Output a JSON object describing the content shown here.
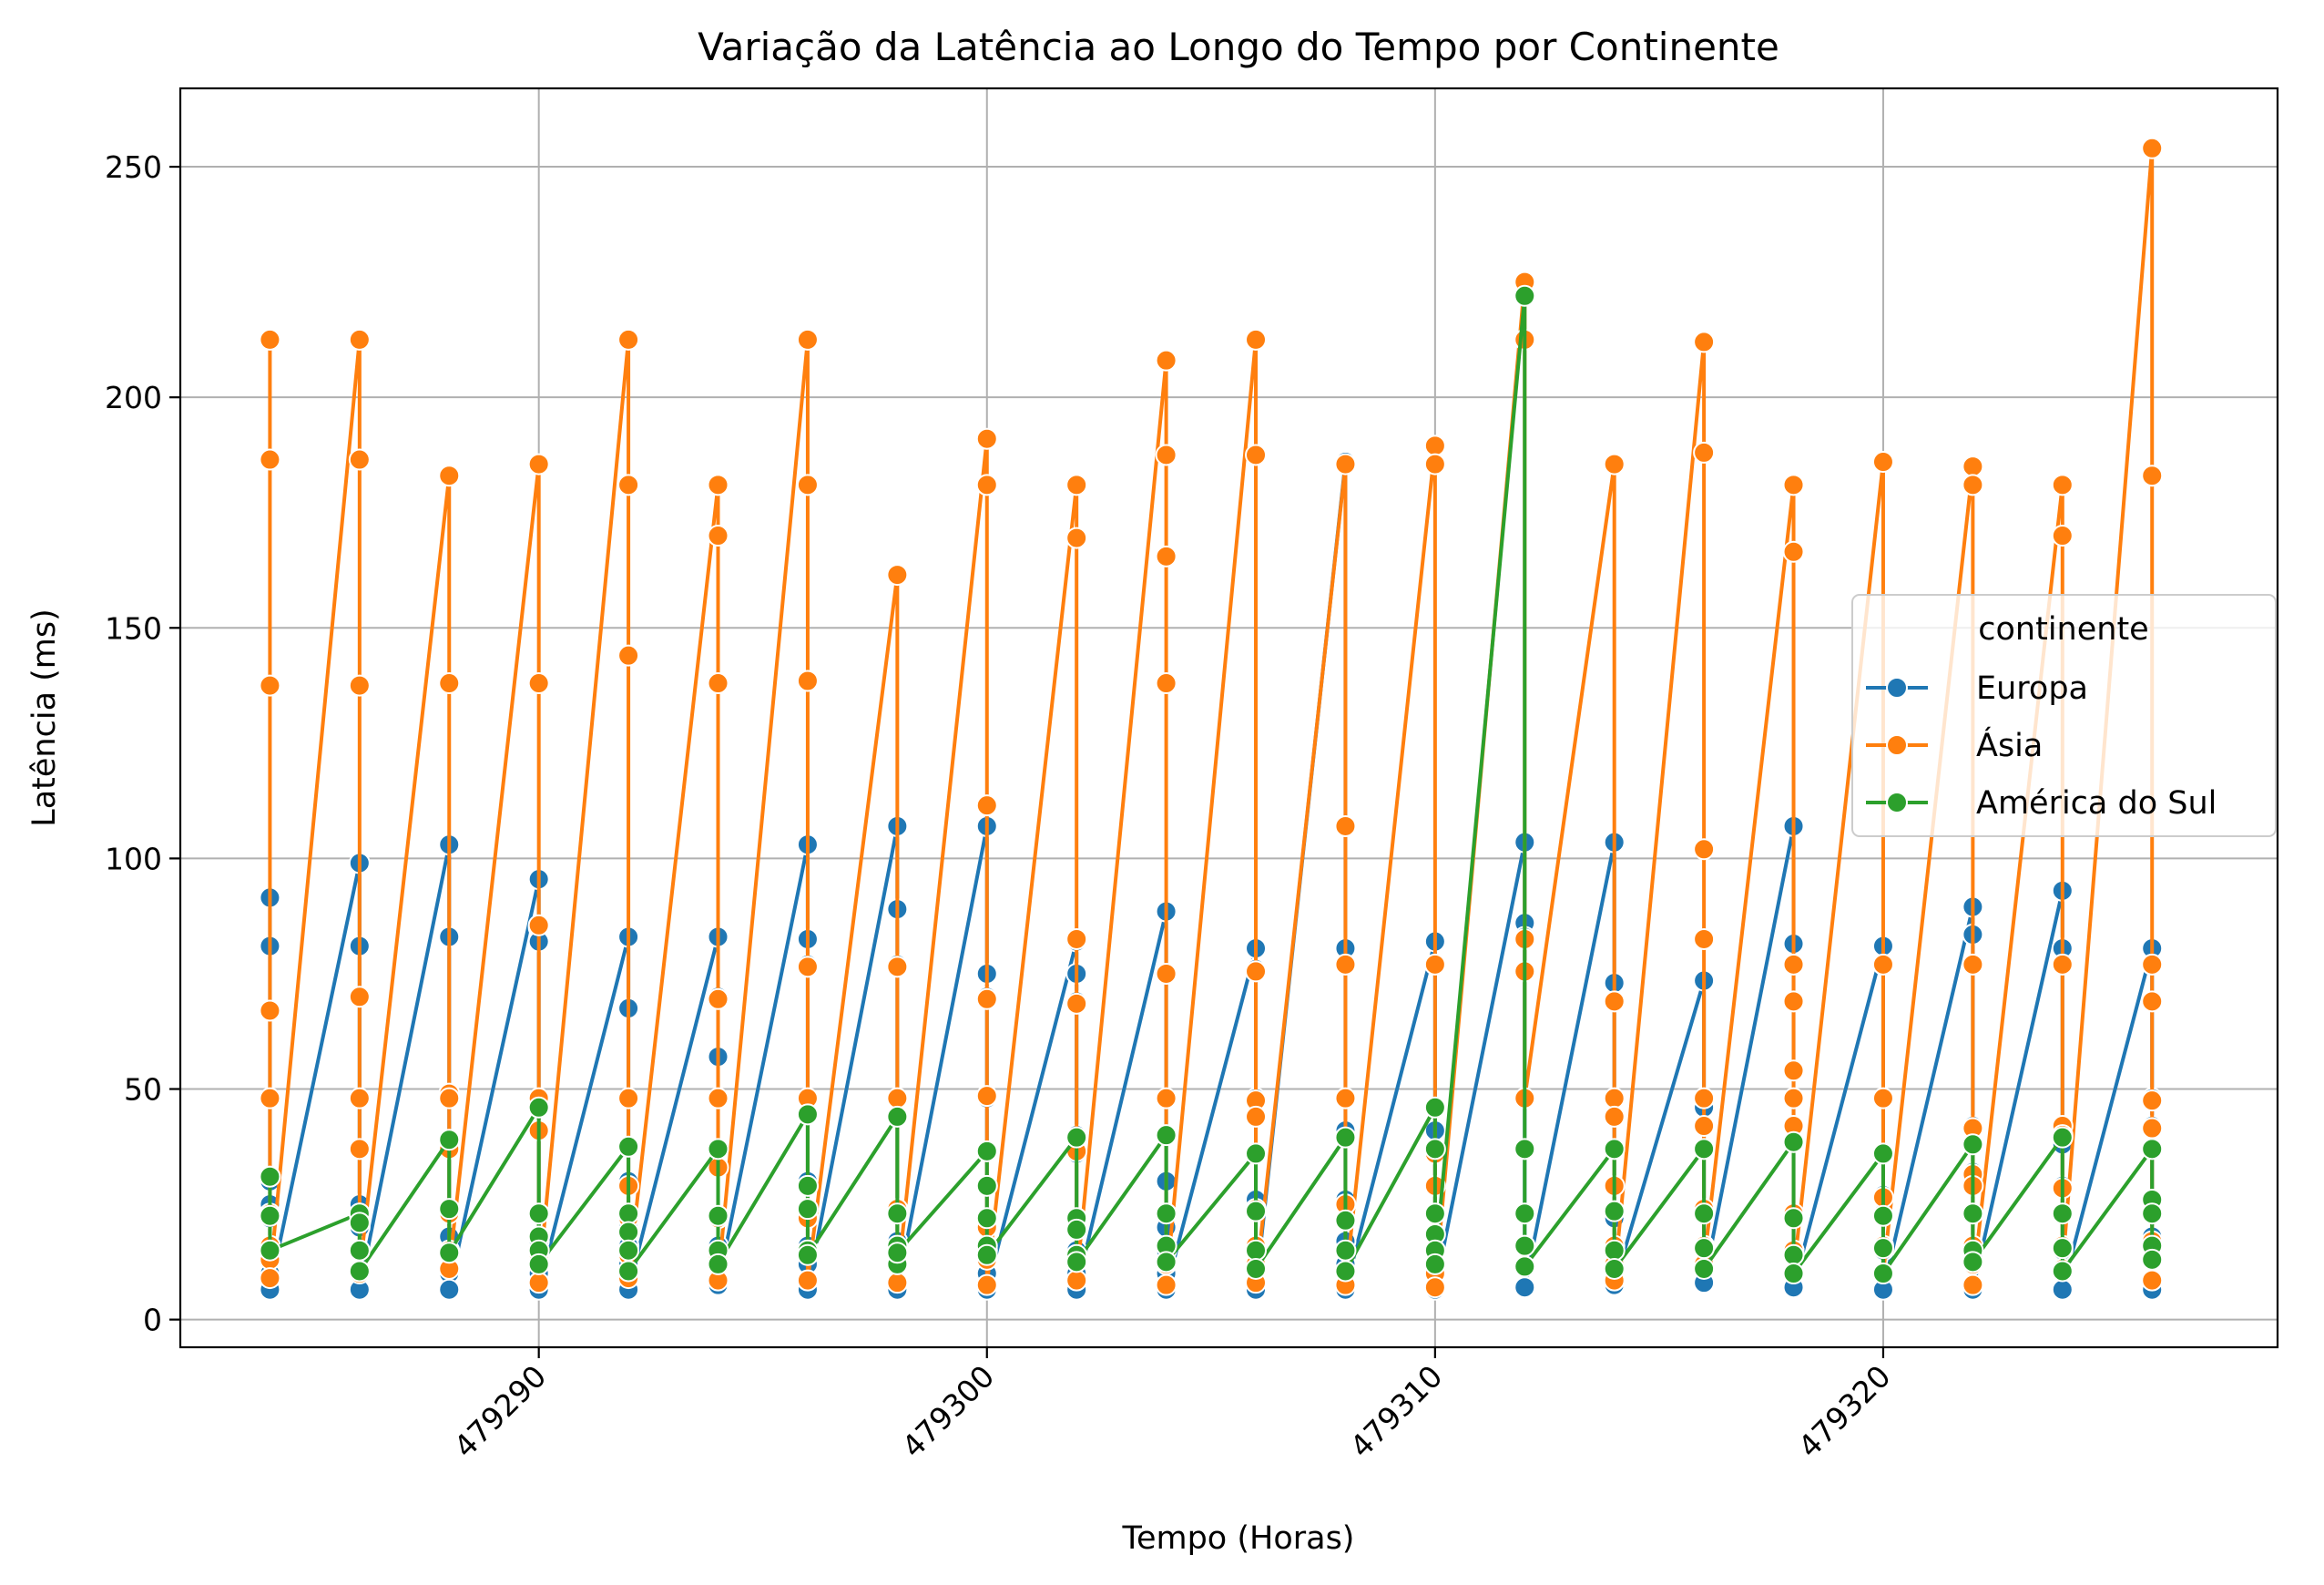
{
  "chart_data": {
    "type": "line",
    "title": "Variação da Latência ao Longo do Tempo por Continente",
    "xlabel": "Tempo (Horas)",
    "ylabel": "Latência (ms)",
    "xlim": [
      479282,
      479328.8
    ],
    "ylim": [
      -6,
      267
    ],
    "x_ticks": [
      479290,
      479300,
      479310,
      479320
    ],
    "y_ticks": [
      0,
      50,
      100,
      150,
      200,
      250
    ],
    "grid": true,
    "legend": {
      "title": "continente",
      "placement": "center-right"
    },
    "series": [
      {
        "name": "Europa",
        "color": "#1f77b4",
        "points_per_hour": [
          {
            "x": 479284,
            "values": [
              91.5,
              81,
              67,
              48,
              30,
              25,
              22,
              16,
              13,
              10,
              6.5
            ]
          },
          {
            "x": 479286,
            "values": [
              99,
              81,
              70,
              48,
              37,
              25,
              20,
              15,
              10,
              6.5
            ]
          },
          {
            "x": 479288,
            "values": [
              103,
              83,
              49,
              38,
              24,
              18,
              14,
              10,
              6.5
            ]
          },
          {
            "x": 479290,
            "values": [
              95.5,
              85,
              82,
              48,
              41,
              23,
              17,
              14,
              10,
              6.5
            ]
          },
          {
            "x": 479292,
            "values": [
              83,
              67.5,
              48,
              30,
              20,
              16,
              12,
              6.5
            ]
          },
          {
            "x": 479294,
            "values": [
              83,
              70,
              57,
              48,
              33,
              22,
              16,
              12,
              7.5
            ]
          },
          {
            "x": 479296,
            "values": [
              103,
              82.5,
              77,
              48,
              30,
              22,
              16,
              12,
              6.5
            ]
          },
          {
            "x": 479298,
            "values": [
              107,
              89,
              77,
              48,
              24,
              17,
              12,
              6.5
            ]
          },
          {
            "x": 479300,
            "values": [
              107,
              75,
              70,
              48,
              29,
              20,
              15,
              10,
              6.5
            ]
          },
          {
            "x": 479302,
            "values": [
              82,
              75,
              69,
              40,
              36,
              20,
              15,
              10,
              6.5
            ]
          },
          {
            "x": 479304,
            "values": [
              88.5,
              75,
              40,
              30,
              20,
              15,
              10,
              6.5
            ]
          },
          {
            "x": 479306,
            "values": [
              80.5,
              76,
              48,
              44,
              26,
              16,
              12,
              6.5
            ]
          },
          {
            "x": 479308,
            "values": [
              186,
              107,
              80.5,
              77,
              48,
              41,
              26,
              17,
              12,
              6.5
            ]
          },
          {
            "x": 479310,
            "values": [
              82,
              77,
              46,
              41,
              36,
              29,
              23,
              15,
              10,
              6.5
            ]
          },
          {
            "x": 479312,
            "values": [
              103.5,
              86,
              83,
              75.5,
              48,
              37,
              23,
              16,
              7
            ]
          },
          {
            "x": 479314,
            "values": [
              103.5,
              73,
              69,
              48,
              37,
              29,
              22,
              15,
              10,
              7.5
            ]
          },
          {
            "x": 479316,
            "values": [
              73.5,
              48,
              46,
              37,
              23,
              16,
              12,
              8
            ]
          },
          {
            "x": 479318,
            "values": [
              107,
              81.5,
              77,
              69,
              54,
              42,
              22,
              15,
              10,
              7
            ]
          },
          {
            "x": 479320,
            "values": [
              81,
              77,
              48,
              36,
              27,
              23,
              15,
              10,
              6.5
            ]
          },
          {
            "x": 479322,
            "values": [
              89.5,
              83.5,
              77,
              42,
              38,
              32,
              23,
              16,
              12,
              6.5
            ]
          },
          {
            "x": 479324,
            "values": [
              93,
              80.5,
              77,
              42,
              40,
              38,
              29,
              23,
              15,
              6.5
            ]
          },
          {
            "x": 479326,
            "values": [
              80.5,
              77,
              69,
              48,
              42,
              37,
              26,
              18,
              13,
              6.5
            ]
          }
        ]
      },
      {
        "name": "Ásia",
        "color": "#ff7f0e",
        "points_per_hour": [
          {
            "x": 479284,
            "values": [
              212.5,
              186.5,
              137.5,
              67,
              48,
              31,
              23,
              16,
              13,
              9
            ]
          },
          {
            "x": 479286,
            "values": [
              212.5,
              186.5,
              137.5,
              70,
              48,
              37,
              23,
              15,
              10
            ]
          },
          {
            "x": 479288,
            "values": [
              183,
              138,
              49,
              48,
              37,
              23,
              15,
              11
            ]
          },
          {
            "x": 479290,
            "values": [
              185.5,
              138,
              85.5,
              48,
              41,
              23,
              14,
              8
            ]
          },
          {
            "x": 479292,
            "values": [
              212.5,
              181,
              144,
              48,
              29,
              22,
              14,
              9
            ]
          },
          {
            "x": 479294,
            "values": [
              181,
              170,
              138,
              69.5,
              48,
              33,
              22,
              14,
              8.5
            ]
          },
          {
            "x": 479296,
            "values": [
              212.5,
              181,
              138.5,
              76.5,
              48,
              29,
              22,
              15,
              8.5
            ]
          },
          {
            "x": 479298,
            "values": [
              161.5,
              76.5,
              48,
              24,
              16,
              12,
              8
            ]
          },
          {
            "x": 479300,
            "values": [
              191,
              181,
              111.5,
              69.5,
              48.5,
              29,
              20,
              13,
              7.5
            ]
          },
          {
            "x": 479302,
            "values": [
              181,
              169.5,
              82.5,
              68.5,
              36.5,
              22,
              14,
              8.5
            ]
          },
          {
            "x": 479304,
            "values": [
              208,
              187.5,
              165.5,
              138,
              75,
              48,
              23,
              16,
              12,
              7.5
            ]
          },
          {
            "x": 479306,
            "values": [
              212.5,
              187.5,
              75.5,
              47.5,
              44,
              24,
              16,
              12,
              8
            ]
          },
          {
            "x": 479308,
            "values": [
              185.5,
              107,
              77,
              48,
              25,
              15,
              10,
              7.5
            ]
          },
          {
            "x": 479310,
            "values": [
              189.5,
              185.5,
              77,
              36,
              29,
              23,
              15,
              10,
              7
            ]
          },
          {
            "x": 479312,
            "values": [
              225,
              212.5,
              82.5,
              75.5,
              48
            ]
          },
          {
            "x": 479314,
            "values": [
              185.5,
              69,
              48,
              44,
              29,
              16,
              12,
              8.5
            ]
          },
          {
            "x": 479316,
            "values": [
              212,
              188,
              102,
              82.5,
              48,
              42,
              24,
              16,
              12
            ]
          },
          {
            "x": 479318,
            "values": [
              181,
              166.5,
              77,
              69,
              54,
              48,
              42,
              23,
              15,
              10
            ]
          },
          {
            "x": 479320,
            "values": [
              186,
              77,
              48,
              26.5,
              16,
              10
            ]
          },
          {
            "x": 479322,
            "values": [
              185,
              181,
              77,
              41.5,
              31.5,
              29,
              16,
              12,
              7.5
            ]
          },
          {
            "x": 479324,
            "values": [
              181,
              170,
              77,
              42,
              40,
              28.5,
              16,
              11
            ]
          },
          {
            "x": 479326,
            "values": [
              254,
              183,
              77,
              69,
              47.5,
              41.5,
              17,
              13,
              8.5
            ]
          }
        ]
      },
      {
        "name": "América do Sul",
        "color": "#2ca02c",
        "points_per_hour": [
          {
            "x": 479284,
            "values": [
              31,
              22.5,
              15
            ]
          },
          {
            "x": 479286,
            "values": [
              23,
              21,
              15,
              10.5
            ]
          },
          {
            "x": 479288,
            "values": [
              39,
              24,
              14.5
            ]
          },
          {
            "x": 479290,
            "values": [
              46,
              23,
              18,
              15,
              12
            ]
          },
          {
            "x": 479292,
            "values": [
              37.5,
              23,
              19,
              15,
              10.5
            ]
          },
          {
            "x": 479294,
            "values": [
              37,
              22.5,
              15,
              12
            ]
          },
          {
            "x": 479296,
            "values": [
              44.5,
              29,
              24,
              15,
              14
            ]
          },
          {
            "x": 479298,
            "values": [
              44,
              23,
              16,
              12,
              14.5
            ]
          },
          {
            "x": 479300,
            "values": [
              36.5,
              29,
              22,
              16,
              14
            ]
          },
          {
            "x": 479302,
            "values": [
              39.5,
              22,
              19.5,
              14,
              12.5
            ]
          },
          {
            "x": 479304,
            "values": [
              40,
              23,
              16,
              12.5
            ]
          },
          {
            "x": 479306,
            "values": [
              36,
              23.5,
              15,
              11
            ]
          },
          {
            "x": 479308,
            "values": [
              39.5,
              21.5,
              15,
              10.5
            ]
          },
          {
            "x": 479310,
            "values": [
              46,
              37,
              23,
              18.5,
              15,
              12
            ]
          },
          {
            "x": 479312,
            "values": [
              222,
              37,
              23,
              16,
              11.5
            ]
          },
          {
            "x": 479314,
            "values": [
              37,
              23.5,
              15,
              11
            ]
          },
          {
            "x": 479316,
            "values": [
              37,
              23,
              15.5,
              11
            ]
          },
          {
            "x": 479318,
            "values": [
              38.5,
              22,
              14,
              10
            ]
          },
          {
            "x": 479320,
            "values": [
              36,
              22.5,
              15.5,
              10
            ]
          },
          {
            "x": 479322,
            "values": [
              38,
              23,
              15,
              12.5
            ]
          },
          {
            "x": 479324,
            "values": [
              39.5,
              23,
              15.5,
              10.5
            ]
          },
          {
            "x": 479326,
            "values": [
              37,
              26,
              23,
              16,
              13
            ]
          }
        ]
      }
    ]
  }
}
